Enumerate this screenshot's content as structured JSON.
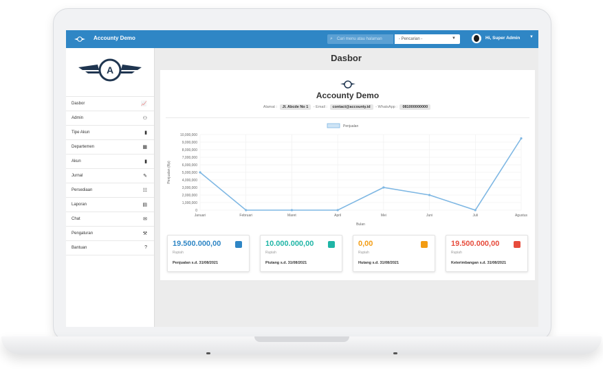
{
  "topbar": {
    "app_title": "Accounty Demo",
    "search_placeholder": "Cari menu atau halaman",
    "search_select": "- Pencarian -",
    "user_name": "Hi, Super Admin"
  },
  "sidebar": {
    "logo_letter": "A",
    "items": [
      {
        "label": "Dasbor",
        "icon": "chart-icon"
      },
      {
        "label": "Admin",
        "icon": "users-icon"
      },
      {
        "label": "Tipe Akun",
        "icon": "file-icon"
      },
      {
        "label": "Departemen",
        "icon": "building-icon"
      },
      {
        "label": "Akun",
        "icon": "file-icon"
      },
      {
        "label": "Jurnal",
        "icon": "edit-file-icon"
      },
      {
        "label": "Persediaan",
        "icon": "sitemap-icon"
      },
      {
        "label": "Laporan",
        "icon": "calendar-icon"
      },
      {
        "label": "Chat",
        "icon": "chat-icon"
      },
      {
        "label": "Pengaturan",
        "icon": "tools-icon"
      },
      {
        "label": "Bantuan",
        "icon": "question-icon"
      }
    ]
  },
  "page": {
    "title": "Dasbor"
  },
  "company": {
    "name": "Accounty Demo",
    "address_label": "Alamat :",
    "address": "Jl. Abcde No 1",
    "email_label": "- Email :",
    "email": "contact@accounty.id",
    "whatsapp_label": "- WhatsApp :",
    "whatsapp": "081000000000"
  },
  "chart_data": {
    "type": "line",
    "categories": [
      "Januari",
      "Februari",
      "Maret",
      "April",
      "Mei",
      "Juni",
      "Juli",
      "Agustus"
    ],
    "series": [
      {
        "name": "Penjualan",
        "values": [
          5000000,
          0,
          0,
          0,
          3000000,
          2000000,
          0,
          9500000
        ]
      }
    ],
    "xlabel": "Bulan",
    "ylabel": "Penjualan (Rp)",
    "ylim": [
      0,
      10000000
    ],
    "yticks": [
      "0",
      "1,000,000",
      "2,000,000",
      "3,000,000",
      "4,000,000",
      "5,000,000",
      "6,000,000",
      "7,000,000",
      "8,000,000",
      "9,000,000",
      "10,000,000"
    ],
    "grid": true,
    "legend": "top",
    "color": "#7eb7e3"
  },
  "cards": [
    {
      "amount": "19.500.000,00",
      "unit": "Rupiah",
      "label": "Penjualan s.d. 31/08/2021",
      "color": "#2f86c5",
      "icon": "cash-register-icon"
    },
    {
      "amount": "10.000.000,00",
      "unit": "Rupiah",
      "label": "Piutang s.d. 31/08/2021",
      "color": "#1fb5a6",
      "icon": "hand-coin-icon"
    },
    {
      "amount": "0,00",
      "unit": "Rupiah",
      "label": "Hutang s.d. 31/08/2021",
      "color": "#f39c12",
      "icon": "receipt-icon"
    },
    {
      "amount": "19.500.000,00",
      "unit": "Rupiah",
      "label": "Keterimbangan s.d. 31/08/2021",
      "color": "#e74c3c",
      "icon": "balance-scale-icon"
    }
  ]
}
